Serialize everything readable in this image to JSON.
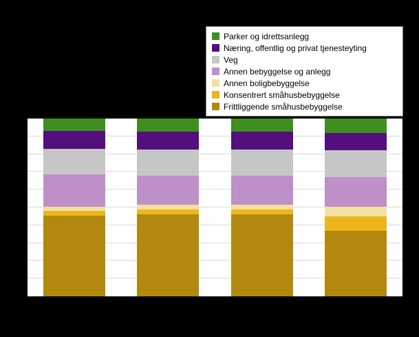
{
  "page": {
    "background": "#000000"
  },
  "plot": {
    "background": "#ffffff",
    "grid_color": "#d9d9d9",
    "grid_interval_percent": 10
  },
  "chart_data": {
    "type": "bar",
    "stacked": true,
    "unit": "percent",
    "categories": [
      "",
      "",
      "",
      ""
    ],
    "ylim": [
      0,
      100
    ],
    "grid": "horizontal, every 10%",
    "legend_position": "top-right",
    "series": [
      {
        "name": "Parker og idrettsanlegg",
        "color": "#3e8f1f",
        "values": [
          7,
          7.5,
          7.5,
          8
        ]
      },
      {
        "name": "Næring, offentlig og privat tjenesteyting",
        "color": "#530f7d",
        "values": [
          10,
          10,
          10,
          10
        ]
      },
      {
        "name": "Veg",
        "color": "#c6c6c6",
        "values": [
          14.5,
          14.5,
          14.5,
          15
        ]
      },
      {
        "name": "Annen bebyggelse og anlegg",
        "color": "#bf8fc9",
        "values": [
          18,
          16.5,
          16.5,
          16.5
        ]
      },
      {
        "name": "Annen boligbebyggelse",
        "color": "#f2e2a2",
        "values": [
          2.5,
          2.5,
          2.5,
          5.5
        ]
      },
      {
        "name": "Konsentrert småhusbebyggelse",
        "color": "#ecb61c",
        "values": [
          2.5,
          3,
          3,
          8
        ]
      },
      {
        "name": "Frittliggende småhusbebyggelse",
        "color": "#b3880e",
        "values": [
          45.5,
          46,
          46,
          37
        ]
      }
    ]
  }
}
